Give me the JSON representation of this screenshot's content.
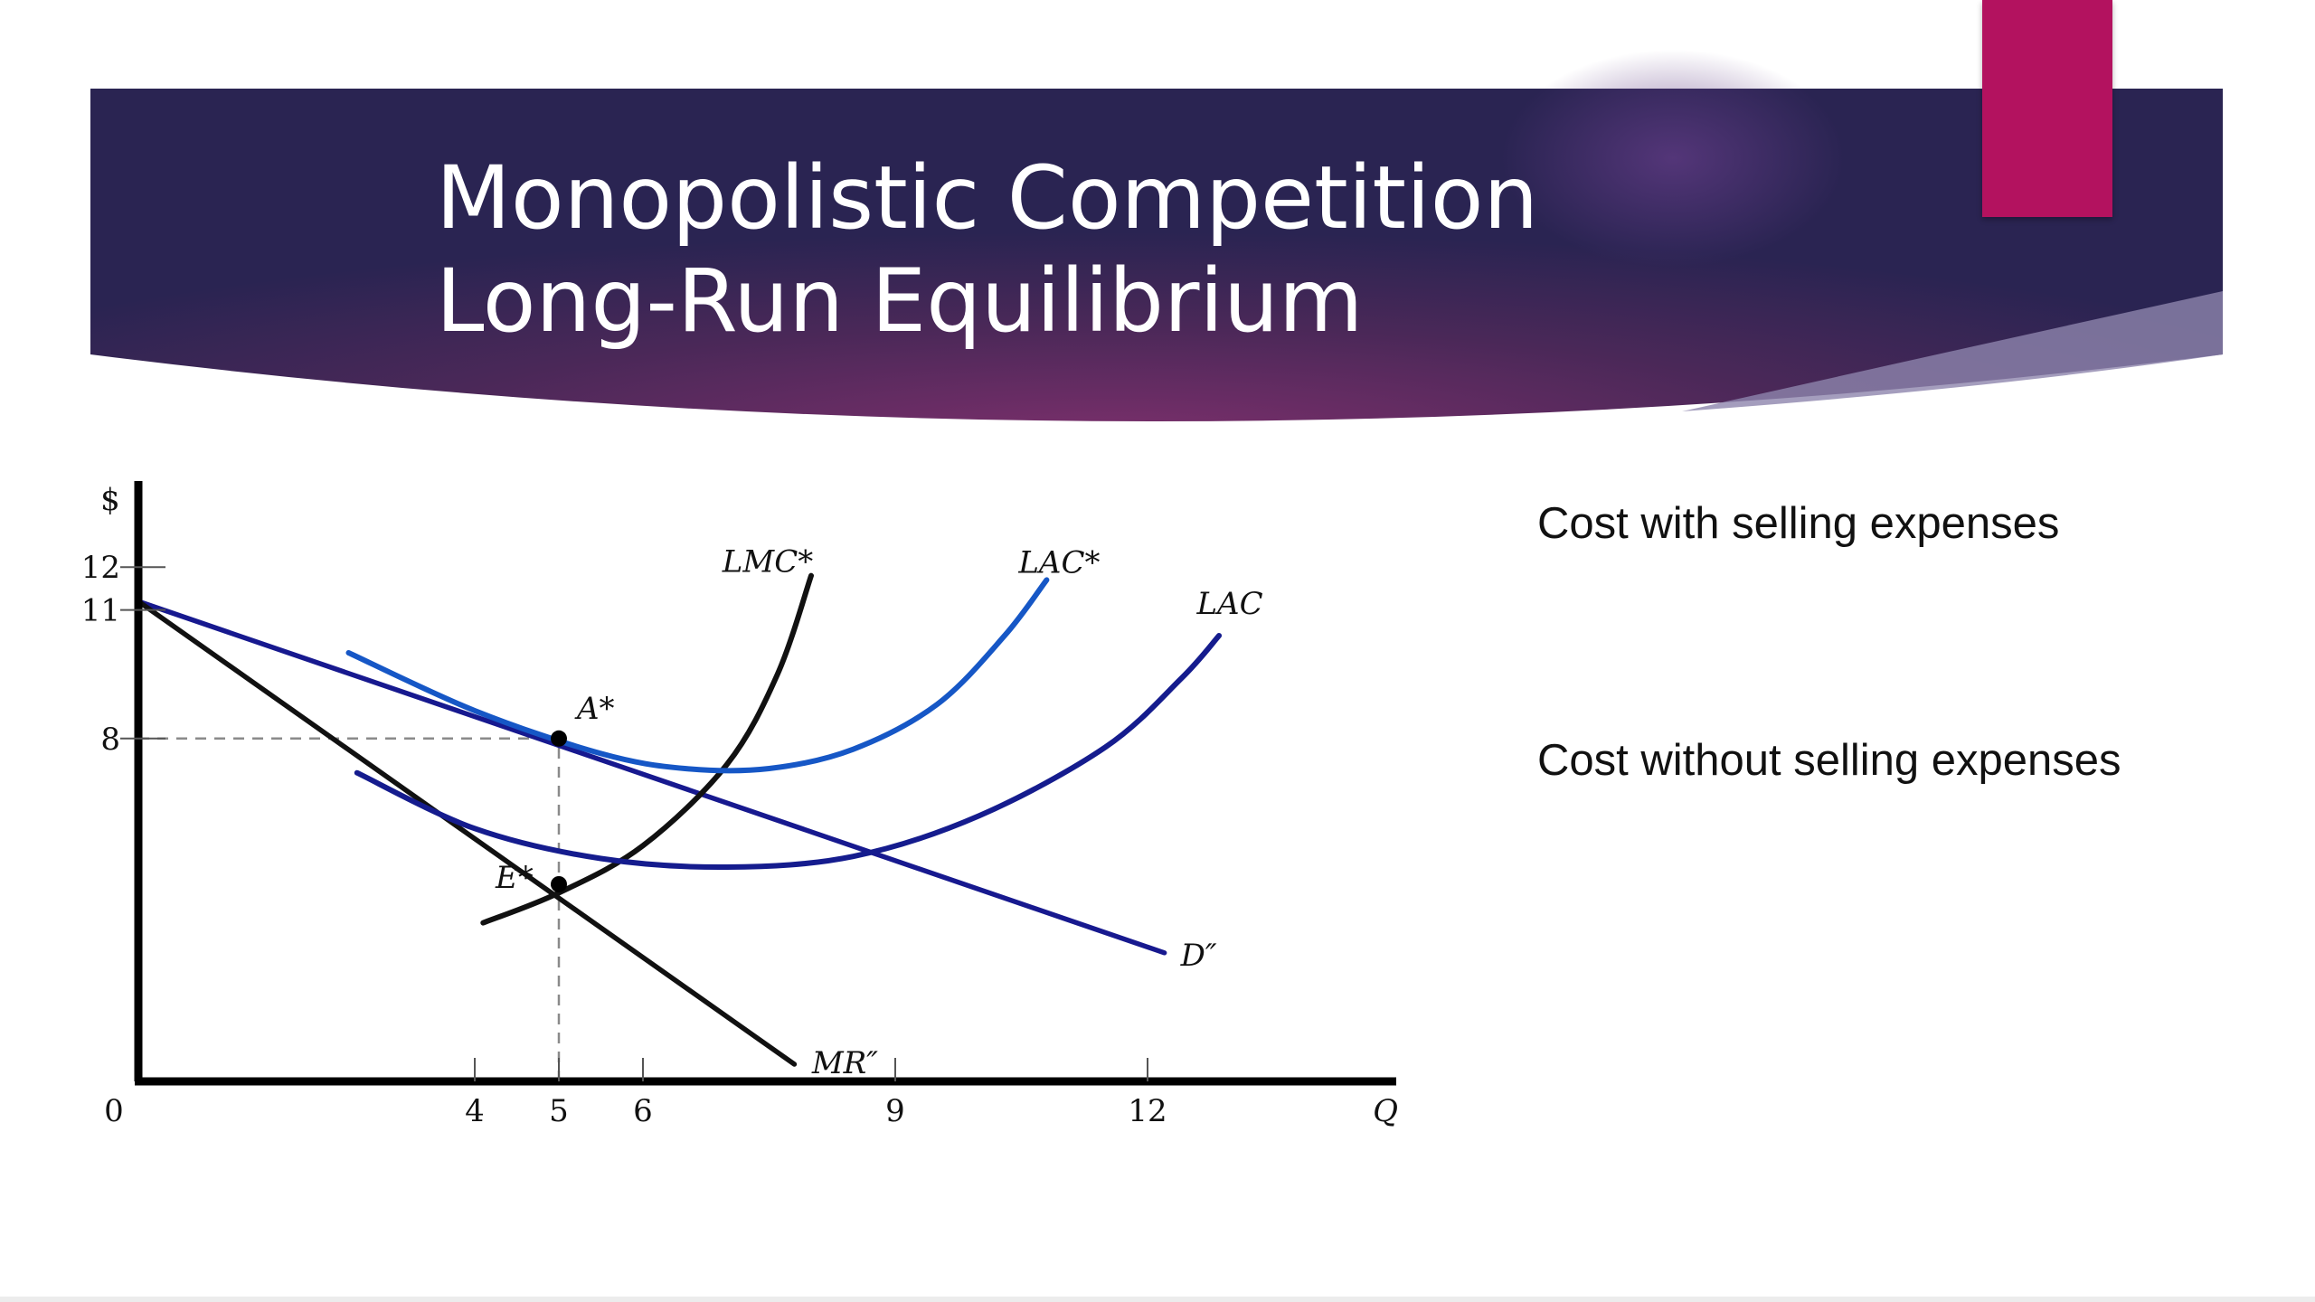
{
  "slide": {
    "title_lines": [
      "Monopolistic Competition",
      "Long-Run Equilibrium"
    ],
    "callouts": [
      "Cost with selling expenses",
      "Cost without selling expenses"
    ],
    "colors": {
      "banner_dark": "#2a2452",
      "banner_mid": "#6b2c66",
      "accent_tab": "#b3125f"
    }
  },
  "chart_data": {
    "type": "line",
    "title": "",
    "xlabel": "Q",
    "ylabel": "$",
    "xlim": [
      0,
      15
    ],
    "ylim": [
      0,
      14
    ],
    "x_ticks": [
      4,
      5,
      6,
      9,
      12
    ],
    "y_ticks": [
      8,
      11,
      12
    ],
    "origin_label": "0",
    "grid": false,
    "series": [
      {
        "name": "D″",
        "color": "#17198f",
        "width": 5.5,
        "points": [
          [
            0,
            11.2
          ],
          [
            12.2,
            3.0
          ]
        ]
      },
      {
        "name": "MR″",
        "color": "#111111",
        "width": 5.5,
        "points": [
          [
            0,
            11.2
          ],
          [
            7.8,
            0.4
          ]
        ]
      },
      {
        "name": "LMC*",
        "color": "#111111",
        "width": 6,
        "points": [
          [
            4.1,
            3.7
          ],
          [
            5,
            4.4
          ],
          [
            6,
            5.5
          ],
          [
            7,
            7.4
          ],
          [
            7.6,
            9.5
          ],
          [
            8,
            11.8
          ]
        ]
      },
      {
        "name": "LAC*",
        "color": "#1657c6",
        "width": 6,
        "points": [
          [
            2.5,
            10.0
          ],
          [
            4,
            8.65
          ],
          [
            5.5,
            7.65
          ],
          [
            6.5,
            7.3
          ],
          [
            7.5,
            7.3
          ],
          [
            8.5,
            7.75
          ],
          [
            9.5,
            8.8
          ],
          [
            10.3,
            10.4
          ],
          [
            10.8,
            11.7
          ]
        ]
      },
      {
        "name": "LAC",
        "color": "#151c8e",
        "width": 6,
        "points": [
          [
            2.6,
            7.2
          ],
          [
            4,
            5.9
          ],
          [
            5.5,
            5.2
          ],
          [
            7,
            5.0
          ],
          [
            8.5,
            5.25
          ],
          [
            10,
            6.2
          ],
          [
            11.5,
            7.8
          ],
          [
            12.4,
            9.4
          ],
          [
            12.85,
            10.4
          ]
        ]
      }
    ],
    "curve_labels": {
      "LMC*": "LMC*",
      "LAC*": "LAC*",
      "LAC": "LAC",
      "D″": "D″",
      "MR″": "MR″"
    },
    "points": [
      {
        "label": "A*",
        "x": 5,
        "y": 8
      },
      {
        "label": "E*",
        "x": 5,
        "y": 4.6
      }
    ],
    "guides": [
      {
        "from": [
          0,
          8
        ],
        "to": [
          5,
          8
        ]
      },
      {
        "from": [
          5,
          0
        ],
        "to": [
          5,
          8
        ]
      }
    ]
  }
}
